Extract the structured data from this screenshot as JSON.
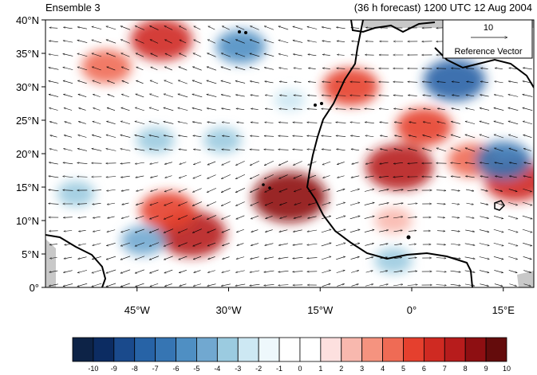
{
  "header": {
    "ensemble_label": "Ensemble 3",
    "forecast_label": "(36 h forecast) 1200 UTC 12 Aug 2004"
  },
  "reference_vector": {
    "magnitude": "10",
    "label": "Reference Vector"
  },
  "axes": {
    "lat_ticks": [
      {
        "value": 40,
        "label": "40°N"
      },
      {
        "value": 35,
        "label": "35°N"
      },
      {
        "value": 30,
        "label": "30°N"
      },
      {
        "value": 25,
        "label": "25°N"
      },
      {
        "value": 20,
        "label": "20°N"
      },
      {
        "value": 15,
        "label": "15°N"
      },
      {
        "value": 10,
        "label": "10°N"
      },
      {
        "value": 5,
        "label": "5°N"
      },
      {
        "value": 0,
        "label": "0°"
      }
    ],
    "lon_ticks": [
      {
        "value": -45,
        "label": "45°W"
      },
      {
        "value": -30,
        "label": "30°W"
      },
      {
        "value": -15,
        "label": "15°W"
      },
      {
        "value": 0,
        "label": "0°"
      },
      {
        "value": 15,
        "label": "15°E"
      }
    ],
    "lon_range": [
      -60,
      20
    ],
    "lat_range": [
      0,
      40
    ]
  },
  "colorbar": {
    "labels": [
      "-10",
      "-9",
      "-8",
      "-7",
      "-6",
      "-5",
      "-4",
      "-3",
      "-2",
      "-1",
      "0",
      "1",
      "2",
      "3",
      "4",
      "5",
      "6",
      "7",
      "8",
      "9",
      "10"
    ],
    "colors": [
      "#0d2347",
      "#0c2c62",
      "#1a4a8c",
      "#2763a6",
      "#3675b3",
      "#4f8fc3",
      "#71a8d0",
      "#9bcbe0",
      "#cde8f3",
      "#eef8fc",
      "#ffffff",
      "#ffffff",
      "#fde0df",
      "#f8b8ae",
      "#f5937f",
      "#ef6b55",
      "#e5402e",
      "#cf2a22",
      "#b71c1c",
      "#8e0f12",
      "#640c0c"
    ]
  },
  "anomalies": [
    {
      "lon": -20,
      "lat": 13.5,
      "value": 9
    },
    {
      "lon": -36,
      "lat": 8,
      "value": 8
    },
    {
      "lon": -40,
      "lat": 11.5,
      "value": 6
    },
    {
      "lon": -41,
      "lat": 37,
      "value": 7
    },
    {
      "lon": -50,
      "lat": 33,
      "value": 5
    },
    {
      "lon": -10,
      "lat": 30,
      "value": 6
    },
    {
      "lon": -2,
      "lat": 18,
      "value": 8
    },
    {
      "lon": 2,
      "lat": 24,
      "value": 6
    },
    {
      "lon": 10,
      "lat": 19,
      "value": 5
    },
    {
      "lon": 17,
      "lat": 16,
      "value": 7
    },
    {
      "lon": -3,
      "lat": 10,
      "value": 3
    },
    {
      "lon": 7,
      "lat": 31,
      "value": -7
    },
    {
      "lon": 15,
      "lat": 19,
      "value": -6
    },
    {
      "lon": -28,
      "lat": 36,
      "value": -5
    },
    {
      "lon": -44,
      "lat": 7,
      "value": -4
    },
    {
      "lon": -42,
      "lat": 22,
      "value": -3
    },
    {
      "lon": -31,
      "lat": 22,
      "value": -3
    },
    {
      "lon": -3,
      "lat": 4,
      "value": -3
    },
    {
      "lon": -55,
      "lat": 14,
      "value": -3
    },
    {
      "lon": -20,
      "lat": 28,
      "value": -2
    }
  ]
}
